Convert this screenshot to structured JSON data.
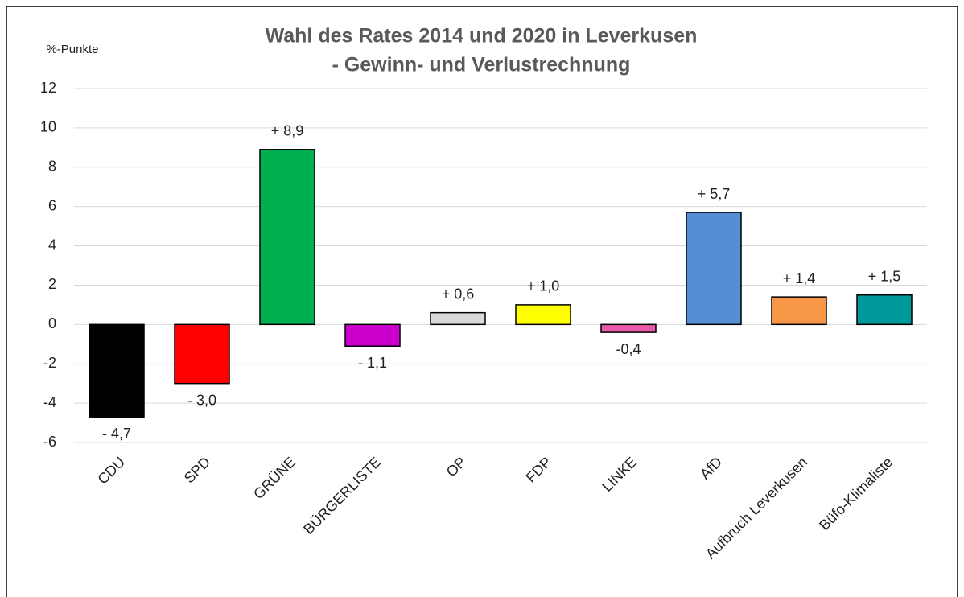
{
  "chart_data": {
    "type": "bar",
    "title": [
      "Wahl des Rates 2014 und 2020 in Leverkusen",
      "- Gewinn- und Verlustrechnung"
    ],
    "y_label": "%-Punkte",
    "categories": [
      "CDU",
      "SPD",
      "GRÜNE",
      "BÜRGERLISTE",
      "OP",
      "FDP",
      "LINKE",
      "AfD",
      "Aufbruch Leverkusen",
      "Büfo-Klimaliste"
    ],
    "values": [
      -4.7,
      -3.0,
      8.9,
      -1.1,
      0.6,
      1.0,
      -0.4,
      5.7,
      1.4,
      1.5
    ],
    "value_labels": [
      "- 4,7",
      "- 3,0",
      "+ 8,9",
      "- 1,1",
      "+ 0,6",
      "+ 1,0",
      "-0,4",
      "+ 5,7",
      "+ 1,4",
      "+ 1,5"
    ],
    "colors": [
      "#000000",
      "#ff0000",
      "#00b050",
      "#cc00cc",
      "#d9d9d9",
      "#ffff00",
      "#e85aa8",
      "#558ed5",
      "#f79646",
      "#009999"
    ],
    "ylim": [
      -6,
      12
    ],
    "yticks": [
      -6,
      -4,
      -2,
      0,
      2,
      4,
      6,
      8,
      10,
      12
    ],
    "grid": true
  }
}
